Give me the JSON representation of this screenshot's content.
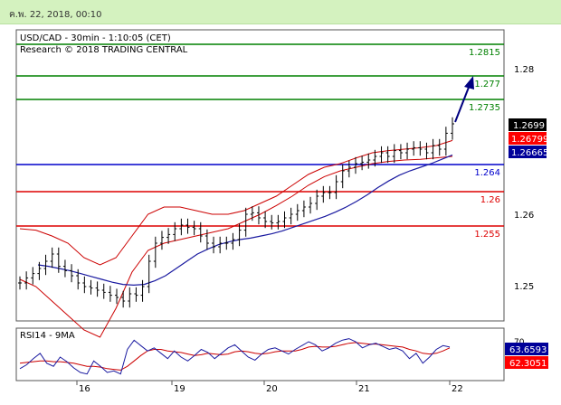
{
  "header": {
    "timestamp": "ค.พ. 22, 2018, 00:10"
  },
  "chart_data": {
    "type": "line",
    "title": "USD/CAD - 30min - 1:10:05 (CET)",
    "subtitle": "Research © 2018 TRADING CENTRAL",
    "price_ticks": [
      "1.28",
      "1.26",
      "1.25"
    ],
    "x_ticks": [
      "16",
      "19",
      "20",
      "21",
      "22"
    ],
    "levels": [
      {
        "label": "1.2815",
        "value": 1.2815,
        "color": "#008000"
      },
      {
        "label": "1.277",
        "value": 1.277,
        "color": "#008000"
      },
      {
        "label": "1.2735",
        "value": 1.2735,
        "color": "#008000"
      },
      {
        "label": "1.264",
        "value": 1.264,
        "color": "#0000cc"
      },
      {
        "label": "1.26",
        "value": 1.26,
        "color": "#dd0000"
      },
      {
        "label": "1.255",
        "value": 1.255,
        "color": "#dd0000"
      }
    ],
    "price_badges": [
      {
        "label": "1.2699",
        "value": 1.2699,
        "bg": "#000000",
        "fg": "#ffffff"
      },
      {
        "label": "1.26799",
        "value": 1.26799,
        "bg": "#ff0000",
        "fg": "#ffffff"
      },
      {
        "label": "1.26665",
        "value": 1.26665,
        "bg": "#000099",
        "fg": "#ffffff"
      }
    ],
    "price_series": [
      1.2505,
      1.2512,
      1.2518,
      1.2525,
      1.2535,
      1.2545,
      1.2528,
      1.2522,
      1.2515,
      1.2505,
      1.25,
      1.2498,
      1.2495,
      1.2492,
      1.2488,
      1.2485,
      1.248,
      1.249,
      1.2488,
      1.25,
      1.2535,
      1.256,
      1.2568,
      1.2572,
      1.258,
      1.2585,
      1.2582,
      1.258,
      1.257,
      1.256,
      1.2555,
      1.256,
      1.256,
      1.2565,
      1.2578,
      1.26,
      1.2602,
      1.2595,
      1.259,
      1.2588,
      1.259,
      1.2595,
      1.26,
      1.2605,
      1.261,
      1.2615,
      1.2625,
      1.263,
      1.263,
      1.2645,
      1.266,
      1.2665,
      1.267,
      1.2672,
      1.2675,
      1.268,
      1.2685,
      1.268,
      1.2688,
      1.2685,
      1.269,
      1.2692,
      1.269,
      1.2685,
      1.2695,
      1.269,
      1.2712,
      1.2725
    ],
    "ma_series": [
      1.253,
      1.2528,
      1.2525,
      1.2522,
      1.2518,
      1.2514,
      1.251,
      1.2506,
      1.2503,
      1.2502,
      1.2503,
      1.2508,
      1.2515,
      1.2525,
      1.2535,
      1.2545,
      1.2552,
      1.2558,
      1.2562,
      1.2565,
      1.2567,
      1.257,
      1.2573,
      1.2577,
      1.2582,
      1.2587,
      1.2592,
      1.2597,
      1.2603,
      1.261,
      1.2618,
      1.2627,
      1.2637,
      1.2646,
      1.2654,
      1.266,
      1.2665,
      1.267,
      1.2676,
      1.2682
    ],
    "band_upper": [
      1.258,
      1.2578,
      1.257,
      1.256,
      1.254,
      1.253,
      1.254,
      1.257,
      1.26,
      1.261,
      1.261,
      1.2605,
      1.26,
      1.26,
      1.2605,
      1.2615,
      1.2625,
      1.264,
      1.2655,
      1.2665,
      1.267,
      1.2678,
      1.2685,
      1.2688,
      1.269,
      1.2692,
      1.2695,
      1.2702
    ],
    "band_lower": [
      1.251,
      1.25,
      1.248,
      1.246,
      1.244,
      1.243,
      1.247,
      1.252,
      1.255,
      1.256,
      1.2565,
      1.257,
      1.2575,
      1.258,
      1.259,
      1.26,
      1.2612,
      1.2625,
      1.264,
      1.2652,
      1.266,
      1.2665,
      1.267,
      1.2673,
      1.2675,
      1.2676,
      1.2678,
      1.268
    ],
    "arrow_target": 1.2785,
    "rsi": {
      "title": "RSI14 - 9MA",
      "level_label": "70",
      "badges": [
        {
          "label": "63.6593",
          "bg": "#000099",
          "fg": "#ffffff"
        },
        {
          "label": "62.3051",
          "bg": "#ff0000",
          "fg": "#ffffff"
        }
      ],
      "series": [
        35,
        40,
        48,
        55,
        42,
        38,
        50,
        44,
        36,
        30,
        28,
        45,
        38,
        30,
        32,
        28,
        60,
        72,
        65,
        58,
        62,
        55,
        48,
        58,
        50,
        45,
        52,
        60,
        56,
        48,
        55,
        62,
        66,
        58,
        50,
        46,
        54,
        60,
        62,
        58,
        54,
        60,
        65,
        70,
        66,
        58,
        62,
        68,
        72,
        74,
        70,
        62,
        66,
        68,
        64,
        60,
        62,
        58,
        48,
        55,
        42,
        50,
        60,
        65,
        63
      ],
      "ma": [
        42,
        43,
        44,
        45,
        45,
        44,
        44,
        43,
        42,
        40,
        38,
        38,
        37,
        35,
        34,
        33,
        38,
        45,
        52,
        58,
        60,
        60,
        58,
        57,
        56,
        54,
        52,
        53,
        55,
        54,
        53,
        54,
        57,
        58,
        57,
        55,
        54,
        55,
        57,
        58,
        58,
        58,
        60,
        63,
        64,
        63,
        63,
        64,
        66,
        68,
        69,
        68,
        67,
        67,
        66,
        65,
        64,
        63,
        60,
        58,
        55,
        54,
        55,
        58,
        62
      ]
    }
  }
}
